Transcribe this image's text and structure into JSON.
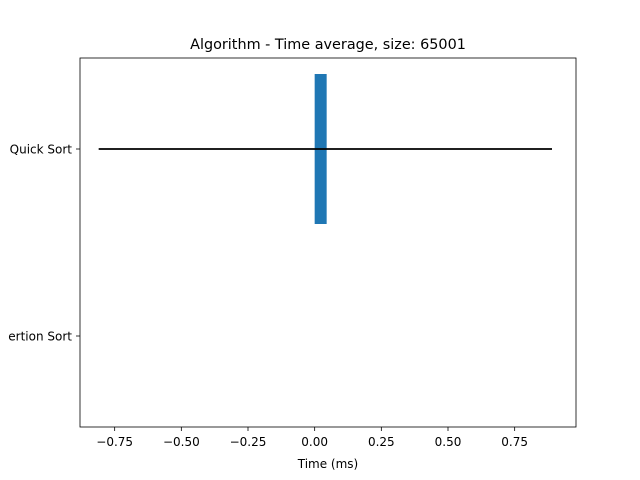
{
  "chart_data": {
    "type": "bar",
    "orientation": "horizontal",
    "title": "Algorithm - Time average, size: 65001",
    "xlabel": "Time (ms)",
    "ylabel": "",
    "categories": [
      "Quick Sort",
      "Insertion Sort"
    ],
    "category_labels_visible": [
      "Quick Sort",
      "ertion Sort"
    ],
    "values": [
      0.04,
      0.0
    ],
    "error": [
      0.85,
      0.0
    ],
    "xlim": [
      -0.88,
      0.98
    ],
    "xticks": [
      -0.75,
      -0.5,
      -0.25,
      0.0,
      0.25,
      0.5,
      0.75
    ],
    "xtick_labels": [
      "−0.75",
      "−0.50",
      "−0.25",
      "0.00",
      "0.25",
      "0.50",
      "0.75"
    ],
    "bar_color": "#1f77b4",
    "error_color": "#000000",
    "grid": false,
    "legend": "none"
  }
}
